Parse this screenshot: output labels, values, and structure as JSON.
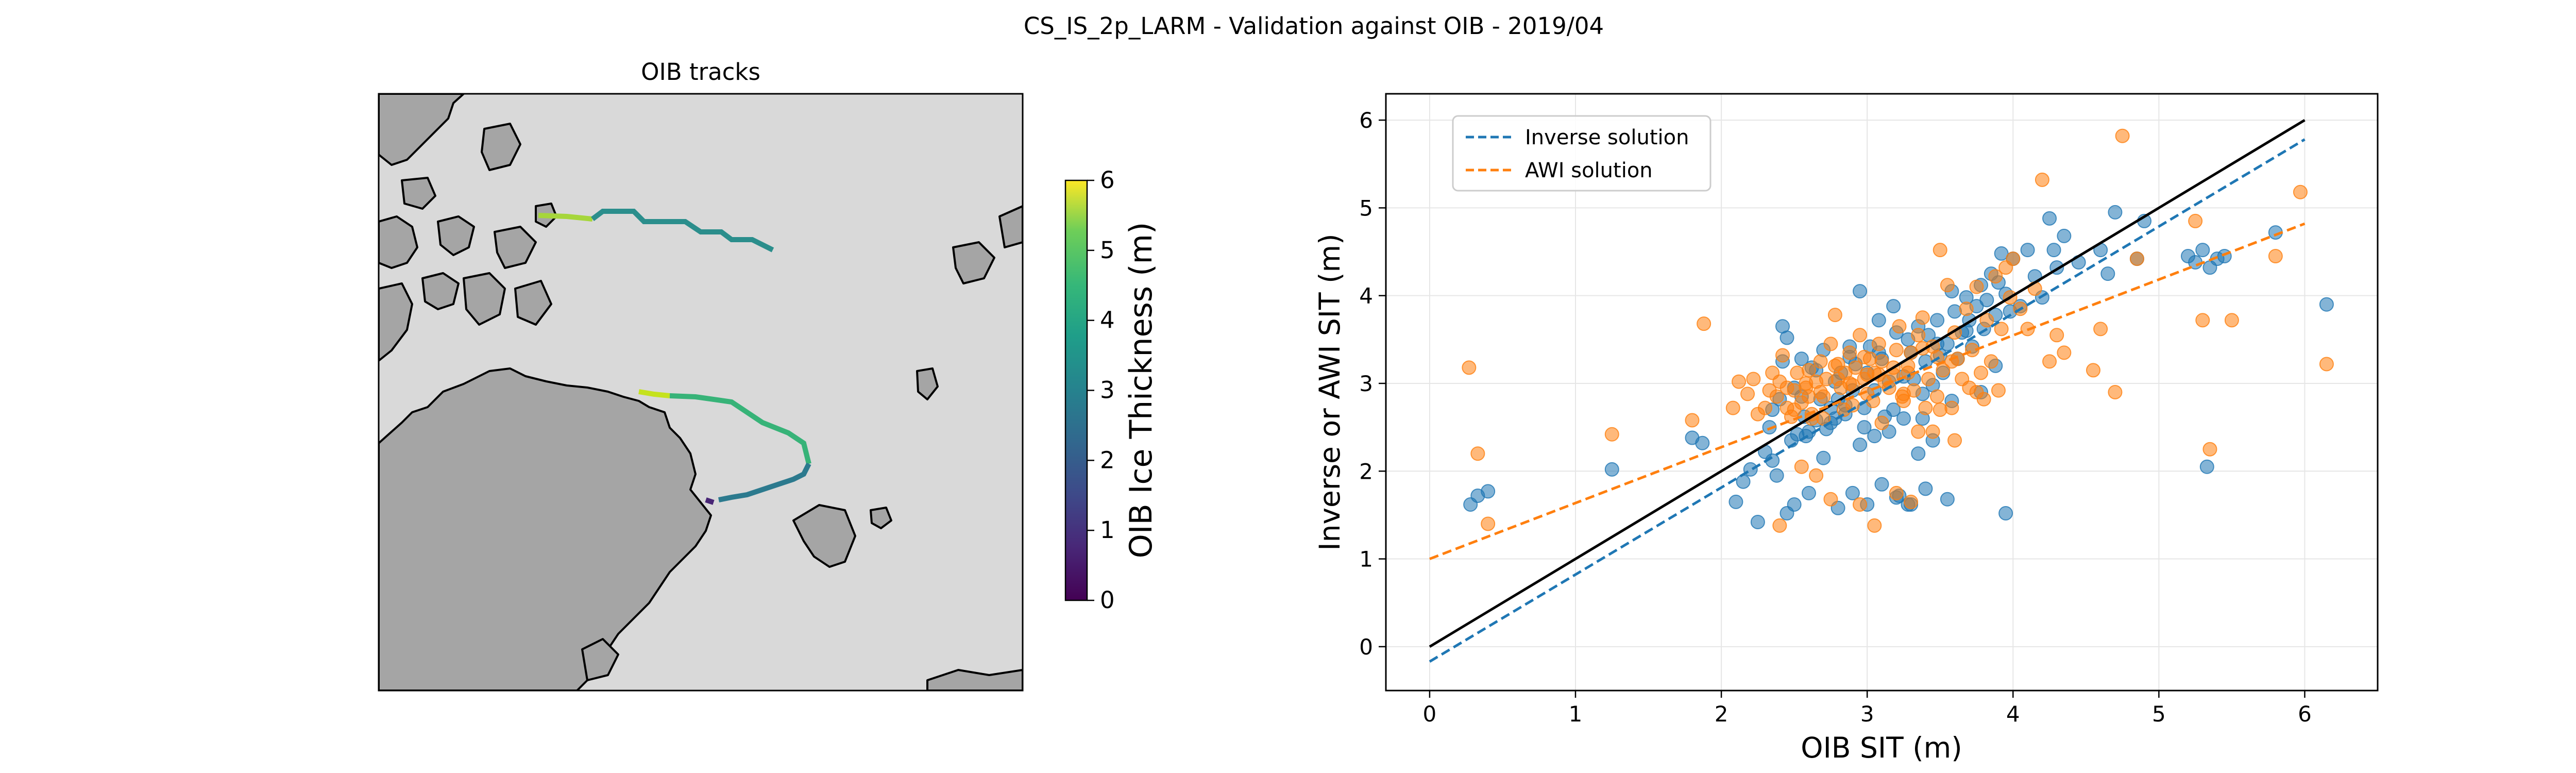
{
  "figure": {
    "suptitle": "CS_IS_2p_LARM - Validation against OIB - 2019/04"
  },
  "map_panel": {
    "title": "OIB tracks",
    "colorbar": {
      "label": "OIB Ice Thickness (m)",
      "min": 0,
      "max": 6,
      "ticks": [
        "0",
        "1",
        "2",
        "3",
        "4",
        "5",
        "6"
      ]
    },
    "colors": {
      "land": "#a5a5a5",
      "ocean": "#d9d9d9",
      "coast": "#000000"
    }
  },
  "chart_data": [
    {
      "type": "line",
      "title": "OIB tracks",
      "colorbar_label": "OIB Ice Thickness (m)",
      "colorbar_range": [
        0,
        6
      ],
      "series": []
    },
    {
      "type": "scatter",
      "title": "",
      "xlabel": "OIB SIT (m)",
      "ylabel": "Inverse or AWI SIT (m)",
      "xlim": [
        -0.3,
        6.5
      ],
      "ylim": [
        -0.5,
        6.3
      ],
      "xticks": [
        "0",
        "1",
        "2",
        "3",
        "4",
        "5",
        "6"
      ],
      "yticks": [
        "0",
        "1",
        "2",
        "3",
        "4",
        "5",
        "6"
      ],
      "grid": true,
      "legend_position": "upper-left",
      "legend": [
        "Inverse solution",
        "AWI solution"
      ],
      "colors": {
        "inverse": "#1f77b4",
        "awi": "#ff7f0e",
        "identity": "#000000"
      },
      "lines": {
        "identity": {
          "x": [
            0,
            6
          ],
          "y": [
            0,
            6
          ]
        },
        "inverse_fit": {
          "x": [
            0,
            6
          ],
          "y": [
            -0.17,
            5.78
          ]
        },
        "awi_fit": {
          "x": [
            0,
            6
          ],
          "y": [
            1.0,
            4.82
          ]
        }
      },
      "series_inverse": {
        "x": [
          0.28,
          0.33,
          0.4,
          1.25,
          1.8,
          1.87,
          2.1,
          2.15,
          2.2,
          2.25,
          2.3,
          2.35,
          2.38,
          2.4,
          2.42,
          2.45,
          2.48,
          2.5,
          2.52,
          2.55,
          2.57,
          2.6,
          2.62,
          2.65,
          2.68,
          2.7,
          2.72,
          2.75,
          2.78,
          2.8,
          2.82,
          2.85,
          2.88,
          2.9,
          2.92,
          2.95,
          2.98,
          3.0,
          3.02,
          3.05,
          3.08,
          3.1,
          3.12,
          3.15,
          3.18,
          3.2,
          3.22,
          3.25,
          3.28,
          3.3,
          3.32,
          3.35,
          3.38,
          3.4,
          3.42,
          3.45,
          3.48,
          3.5,
          3.52,
          3.55,
          3.58,
          3.6,
          3.62,
          3.65,
          3.68,
          3.7,
          3.72,
          3.75,
          3.78,
          3.8,
          3.82,
          3.85,
          3.88,
          3.9,
          3.92,
          3.95,
          3.98,
          4.0,
          4.05,
          4.1,
          4.15,
          4.2,
          4.25,
          4.28,
          4.3,
          4.35,
          4.45,
          4.6,
          4.65,
          4.7,
          4.85,
          4.9,
          5.2,
          5.25,
          5.3,
          5.35,
          5.4,
          5.45,
          5.8,
          6.15,
          2.45,
          2.6,
          2.7,
          2.8,
          2.9,
          3.0,
          3.1,
          3.2,
          3.3,
          3.4,
          3.55,
          3.95,
          2.35,
          2.55,
          2.75,
          2.95,
          3.15,
          3.35,
          2.5,
          2.85,
          3.05,
          3.25,
          3.45,
          5.33,
          2.42,
          2.65,
          2.88,
          3.08,
          3.28,
          3.48,
          3.68,
          3.88,
          2.33,
          2.58,
          2.78,
          2.98,
          3.18,
          3.38,
          3.58,
          3.78
        ],
        "y": [
          1.62,
          1.72,
          1.77,
          2.02,
          2.38,
          2.32,
          1.65,
          1.88,
          2.02,
          1.42,
          2.22,
          2.12,
          1.95,
          2.82,
          3.65,
          3.52,
          2.35,
          1.62,
          2.42,
          3.28,
          2.62,
          1.75,
          3.18,
          2.58,
          2.82,
          3.38,
          2.48,
          2.72,
          3.02,
          2.82,
          3.12,
          2.65,
          3.42,
          2.92,
          3.22,
          4.05,
          2.72,
          3.12,
          3.42,
          2.92,
          3.72,
          3.28,
          2.62,
          3.02,
          3.88,
          3.58,
          1.72,
          3.08,
          1.62,
          3.35,
          3.05,
          3.65,
          2.88,
          3.25,
          3.55,
          2.98,
          3.72,
          3.32,
          3.12,
          3.45,
          4.05,
          3.82,
          3.28,
          3.58,
          3.98,
          3.72,
          3.42,
          3.88,
          4.12,
          3.62,
          3.95,
          4.25,
          3.78,
          4.15,
          4.48,
          4.02,
          3.82,
          4.42,
          3.88,
          4.52,
          4.22,
          3.98,
          4.88,
          4.52,
          4.32,
          4.68,
          4.38,
          4.52,
          4.25,
          4.95,
          4.42,
          4.85,
          4.45,
          4.38,
          4.52,
          4.32,
          4.42,
          4.45,
          4.72,
          3.9,
          1.52,
          2.45,
          2.15,
          1.58,
          1.75,
          1.62,
          1.85,
          1.7,
          1.62,
          1.8,
          1.68,
          1.52,
          2.7,
          2.85,
          2.55,
          2.3,
          2.45,
          2.2,
          2.95,
          2.75,
          2.4,
          2.6,
          2.35,
          2.05,
          3.25,
          3.15,
          3.3,
          3.35,
          3.5,
          3.45,
          3.6,
          3.2,
          2.5,
          2.4,
          2.6,
          2.5,
          2.7,
          2.6,
          2.8,
          2.9
        ]
      },
      "series_awi": {
        "x": [
          0.27,
          0.33,
          0.4,
          1.25,
          1.8,
          1.88,
          2.08,
          2.12,
          2.18,
          2.22,
          2.25,
          2.3,
          2.33,
          2.35,
          2.38,
          2.4,
          2.42,
          2.45,
          2.48,
          2.5,
          2.52,
          2.55,
          2.58,
          2.6,
          2.62,
          2.65,
          2.68,
          2.7,
          2.72,
          2.75,
          2.78,
          2.8,
          2.82,
          2.85,
          2.88,
          2.9,
          2.92,
          2.95,
          2.98,
          3.0,
          3.02,
          3.05,
          3.08,
          3.1,
          3.12,
          3.15,
          3.18,
          3.2,
          3.22,
          3.25,
          3.28,
          3.3,
          3.32,
          3.35,
          3.38,
          3.4,
          3.42,
          3.45,
          3.48,
          3.5,
          3.52,
          3.55,
          3.58,
          3.6,
          3.62,
          3.65,
          3.68,
          3.7,
          3.72,
          3.75,
          3.78,
          3.8,
          3.82,
          3.85,
          3.88,
          3.9,
          3.92,
          3.95,
          3.98,
          4.0,
          4.05,
          4.1,
          4.15,
          4.2,
          4.25,
          4.3,
          4.35,
          4.55,
          4.6,
          4.7,
          4.75,
          4.85,
          5.25,
          5.3,
          5.35,
          5.5,
          5.8,
          5.97,
          6.15,
          2.4,
          2.65,
          2.55,
          2.75,
          2.95,
          3.05,
          3.2,
          3.3,
          3.45,
          3.6,
          2.5,
          2.7,
          2.9,
          3.1,
          3.35,
          2.45,
          2.6,
          2.8,
          3.0,
          3.25,
          3.5,
          3.75,
          2.58,
          2.78,
          2.98,
          3.18,
          3.38,
          3.58,
          2.68,
          2.88,
          3.08,
          3.28,
          3.48,
          2.62,
          2.84,
          3.04,
          3.24
        ],
        "y": [
          3.18,
          2.2,
          1.4,
          2.42,
          2.58,
          3.68,
          2.72,
          3.02,
          2.88,
          3.05,
          2.65,
          2.72,
          2.92,
          3.12,
          2.85,
          3.02,
          3.32,
          2.72,
          2.62,
          2.92,
          3.12,
          2.78,
          2.95,
          3.15,
          2.65,
          3.02,
          3.25,
          2.85,
          3.05,
          3.45,
          3.78,
          3.22,
          2.95,
          3.12,
          3.35,
          2.98,
          3.18,
          3.55,
          3.05,
          2.88,
          3.28,
          3.12,
          3.45,
          3.25,
          3.02,
          2.95,
          3.18,
          3.38,
          3.65,
          2.88,
          3.12,
          3.35,
          2.92,
          3.55,
          3.75,
          2.72,
          3.05,
          3.42,
          2.85,
          4.52,
          3.15,
          4.12,
          2.72,
          3.58,
          3.28,
          3.05,
          3.85,
          2.95,
          3.38,
          4.1,
          3.12,
          2.82,
          3.72,
          3.25,
          4.22,
          2.92,
          3.62,
          4.32,
          3.98,
          4.42,
          3.85,
          3.62,
          4.08,
          5.32,
          3.25,
          3.55,
          3.35,
          3.15,
          3.62,
          2.9,
          5.82,
          4.42,
          4.85,
          3.72,
          2.25,
          3.72,
          4.45,
          5.18,
          3.22,
          1.38,
          1.95,
          2.05,
          1.68,
          1.62,
          1.38,
          1.75,
          1.65,
          2.45,
          2.35,
          2.7,
          2.6,
          2.75,
          2.55,
          2.45,
          2.95,
          2.85,
          3.05,
          3.1,
          2.8,
          2.7,
          2.9,
          3.0,
          3.2,
          3.3,
          3.1,
          3.4,
          3.25,
          2.9,
          3.0,
          3.1,
          3.2,
          3.3,
          2.6,
          2.7,
          2.8,
          2.85
        ]
      }
    }
  ]
}
